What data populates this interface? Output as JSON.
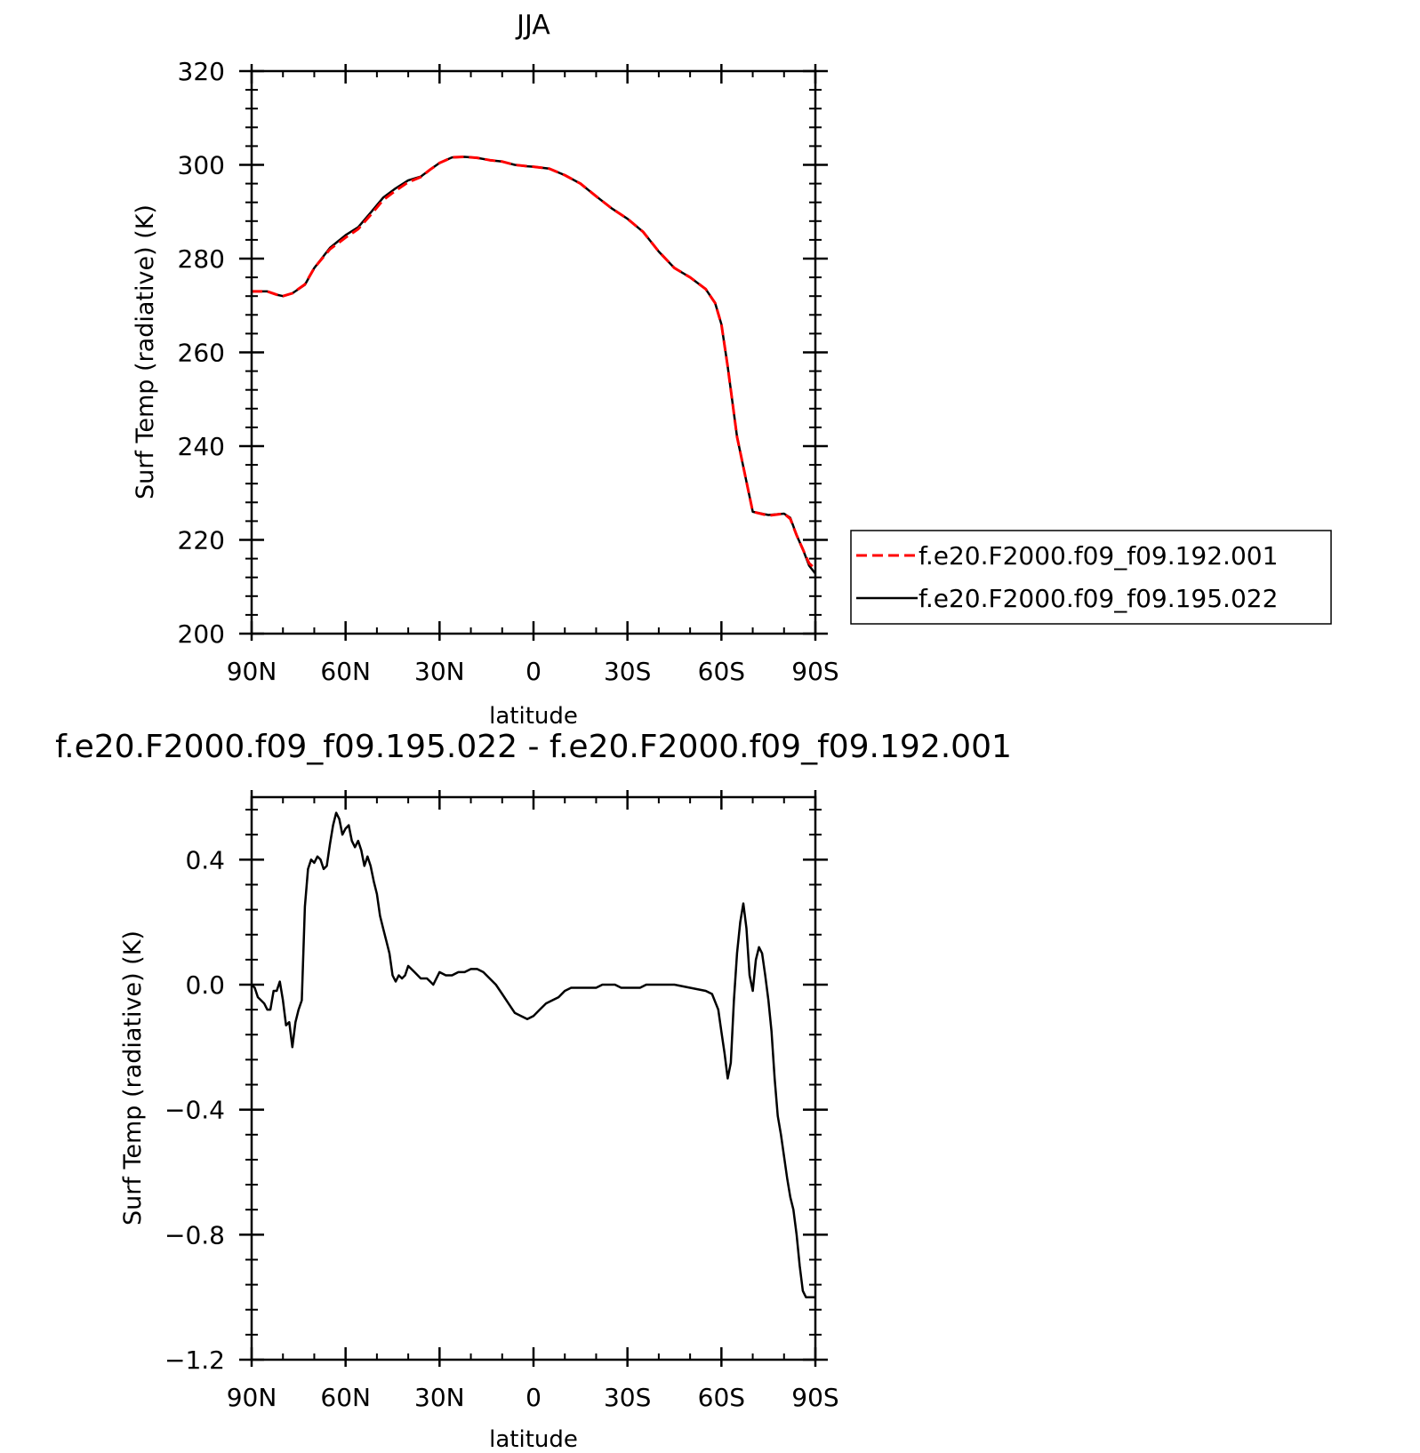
{
  "chart_data": [
    {
      "type": "line",
      "title": "JJA",
      "xlabel": "latitude",
      "ylabel": "Surf Temp (radiative) (K)",
      "xlim": [
        90,
        -90
      ],
      "ylim": [
        200,
        320
      ],
      "xticks": [
        "90N",
        "60N",
        "30N",
        "0",
        "30S",
        "60S",
        "90S"
      ],
      "xtick_values": [
        90,
        60,
        30,
        0,
        -30,
        -60,
        -90
      ],
      "yticks": [
        "200",
        "220",
        "240",
        "260",
        "280",
        "300",
        "320"
      ],
      "ytick_values": [
        200,
        220,
        240,
        260,
        280,
        300,
        320
      ],
      "legend": "right",
      "series": [
        {
          "name": "f.e20.F2000.f09_f09.192.001",
          "color": "#ff0000",
          "style": "dashed",
          "x": [
            90,
            85,
            82,
            80,
            77,
            73,
            70,
            65,
            60,
            56,
            52,
            48,
            44,
            40,
            36,
            33,
            30,
            26,
            22,
            18,
            14,
            10,
            6,
            2,
            0,
            -5,
            -10,
            -15,
            -20,
            -25,
            -30,
            -35,
            -40,
            -45,
            -50,
            -55,
            -58,
            -60,
            -62,
            -65,
            -70,
            -75,
            -80,
            -82,
            -84,
            -86,
            -88,
            -90
          ],
          "values": [
            273,
            273,
            272.3,
            272,
            272.6,
            274.5,
            278,
            282,
            284.5,
            286.3,
            289.3,
            292.5,
            294.5,
            296.3,
            297.4,
            299,
            300.4,
            301.6,
            301.7,
            301.5,
            301,
            300.7,
            300,
            299.7,
            299.6,
            299.2,
            297.8,
            296,
            293.3,
            290.7,
            288.5,
            285.7,
            281.5,
            278,
            276,
            273.5,
            270.5,
            266,
            257,
            242,
            226,
            225.2,
            225.6,
            224.5,
            221,
            218,
            215,
            213.8
          ]
        },
        {
          "name": "f.e20.F2000.f09_f09.195.022",
          "color": "#000000",
          "style": "solid",
          "x": [
            90,
            85,
            82,
            80,
            77,
            73,
            70,
            65,
            60,
            56,
            52,
            48,
            44,
            40,
            36,
            33,
            30,
            26,
            22,
            18,
            14,
            10,
            6,
            2,
            0,
            -5,
            -10,
            -15,
            -20,
            -25,
            -30,
            -35,
            -40,
            -45,
            -50,
            -55,
            -58,
            -60,
            -62,
            -65,
            -70,
            -75,
            -80,
            -82,
            -84,
            -86,
            -88,
            -90
          ],
          "values": [
            273,
            273,
            272.3,
            272,
            272.6,
            274.4,
            278,
            282.3,
            285,
            286.7,
            289.8,
            293,
            295,
            296.7,
            297.5,
            299,
            300.4,
            301.6,
            301.7,
            301.5,
            301,
            300.7,
            300,
            299.7,
            299.6,
            299.2,
            297.8,
            296,
            293.3,
            290.7,
            288.5,
            285.7,
            281.5,
            278,
            276,
            273.5,
            270.5,
            266,
            257,
            242,
            226,
            225.3,
            225.6,
            224.7,
            221,
            218,
            214.5,
            212.8
          ]
        }
      ]
    },
    {
      "type": "line",
      "title": "f.e20.F2000.f09_f09.195.022 - f.e20.F2000.f09_f09.192.001",
      "xlabel": "latitude",
      "ylabel": "Surf Temp (radiative) (K)",
      "xlim": [
        90,
        -90
      ],
      "ylim": [
        -1.2,
        0.6
      ],
      "xticks": [
        "90N",
        "60N",
        "30N",
        "0",
        "30S",
        "60S",
        "90S"
      ],
      "xtick_values": [
        90,
        60,
        30,
        0,
        -30,
        -60,
        -90
      ],
      "yticks": [
        "−1.2",
        "−0.8",
        "−0.4",
        "0.0",
        "0.4"
      ],
      "ytick_values": [
        -1.2,
        -0.8,
        -0.4,
        0.0,
        0.4
      ],
      "series": [
        {
          "name": "",
          "color": "#000000",
          "style": "solid",
          "x": [
            90,
            89,
            88,
            87,
            86,
            85,
            84,
            83,
            82,
            81,
            80,
            79,
            78,
            77,
            76,
            75,
            74,
            73,
            72,
            71,
            70,
            69,
            68,
            67,
            66,
            65,
            64,
            63,
            62,
            61,
            60,
            59,
            58,
            57,
            56,
            55,
            54,
            53,
            52,
            51,
            50,
            49,
            48,
            47,
            46,
            45,
            44,
            43,
            42,
            41,
            40,
            38,
            36,
            34,
            33,
            32,
            30,
            28,
            27,
            26,
            24,
            22,
            20,
            18,
            16,
            14,
            12,
            10,
            8,
            6,
            4,
            2,
            0,
            -2,
            -4,
            -6,
            -8,
            -10,
            -12,
            -14,
            -16,
            -18,
            -20,
            -22,
            -24,
            -26,
            -28,
            -30,
            -32,
            -34,
            -36,
            -40,
            -45,
            -50,
            -55,
            -57,
            -59,
            -60,
            -61,
            -62,
            -63,
            -64,
            -65,
            -66,
            -67,
            -68,
            -69,
            -70,
            -71,
            -72,
            -73,
            -74,
            -75,
            -76,
            -77,
            -78,
            -79,
            -80,
            -81,
            -82,
            -83,
            -84,
            -85,
            -86,
            -87,
            -88,
            -89,
            -90
          ],
          "values": [
            0.0,
            -0.01,
            -0.04,
            -0.05,
            -0.06,
            -0.08,
            -0.08,
            -0.02,
            -0.02,
            0.01,
            -0.05,
            -0.13,
            -0.12,
            -0.2,
            -0.12,
            -0.08,
            -0.05,
            0.25,
            0.37,
            0.4,
            0.39,
            0.41,
            0.4,
            0.37,
            0.38,
            0.45,
            0.51,
            0.55,
            0.53,
            0.48,
            0.5,
            0.51,
            0.46,
            0.44,
            0.46,
            0.43,
            0.38,
            0.41,
            0.38,
            0.33,
            0.29,
            0.22,
            0.18,
            0.14,
            0.1,
            0.03,
            0.01,
            0.03,
            0.02,
            0.03,
            0.06,
            0.04,
            0.02,
            0.02,
            0.01,
            0.0,
            0.04,
            0.03,
            0.03,
            0.03,
            0.04,
            0.04,
            0.05,
            0.05,
            0.04,
            0.02,
            0.0,
            -0.03,
            -0.06,
            -0.09,
            -0.1,
            -0.11,
            -0.1,
            -0.08,
            -0.06,
            -0.05,
            -0.04,
            -0.02,
            -0.01,
            -0.01,
            -0.01,
            -0.01,
            -0.01,
            0.0,
            0.0,
            0.0,
            -0.01,
            -0.01,
            -0.01,
            -0.01,
            0.0,
            0.0,
            0.0,
            -0.01,
            -0.02,
            -0.03,
            -0.08,
            -0.15,
            -0.22,
            -0.3,
            -0.25,
            -0.05,
            0.1,
            0.2,
            0.26,
            0.18,
            0.03,
            -0.02,
            0.08,
            0.12,
            0.1,
            0.03,
            -0.05,
            -0.15,
            -0.3,
            -0.42,
            -0.48,
            -0.55,
            -0.62,
            -0.68,
            -0.72,
            -0.8,
            -0.9,
            -0.98,
            -1.0,
            -1.0,
            -1.0,
            -1.0
          ]
        }
      ]
    }
  ]
}
